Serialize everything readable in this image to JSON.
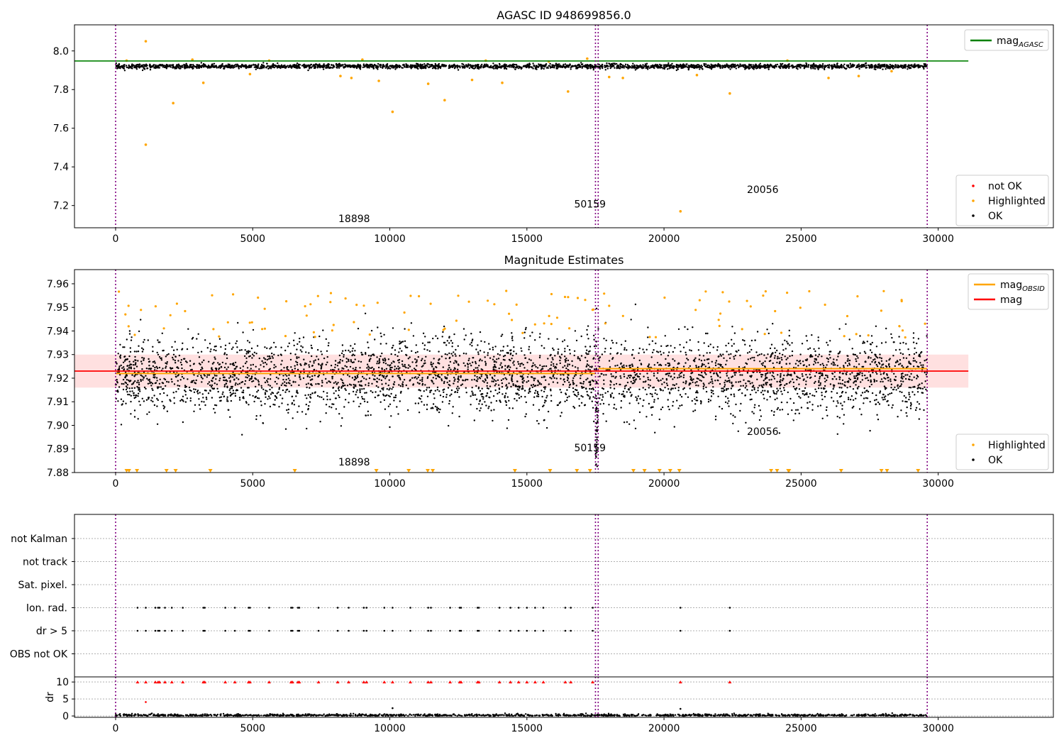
{
  "colors": {
    "ok": "#000000",
    "highlighted": "#ffa500",
    "not_ok": "#ff0000",
    "agasc_line": "#008000",
    "mag_line": "#ff0000",
    "mag_band": "#ffcccc",
    "obsid_line": "#ffa500",
    "vlines": "#800080"
  },
  "chart_data": [
    {
      "type": "scatter",
      "title": "AGASC ID 948699856.0",
      "xlabel": "",
      "ylabel": "",
      "xlim": [
        -1500,
        34200
      ],
      "ylim": [
        7.085,
        8.135
      ],
      "x_ticks": [
        0,
        5000,
        10000,
        15000,
        20000,
        25000,
        30000
      ],
      "y_ticks": [
        7.2,
        7.4,
        7.6,
        7.8,
        8.0
      ],
      "y_tick_labels": [
        "7.2",
        "7.4",
        "7.6",
        "7.8",
        "8.0"
      ],
      "grid": false,
      "x_data_max": 29600,
      "ok_band": {
        "center": 7.92,
        "spread": 0.012
      },
      "reference_lines": [
        {
          "name": "mag_AGASC",
          "label": "mag",
          "subscript": "AGASC",
          "y": 7.948,
          "x": [
            -1500,
            31100
          ],
          "color": "#008000"
        }
      ],
      "vertical_lines": [
        0,
        17500,
        17600,
        29600
      ],
      "annotations": [
        {
          "text": "18898",
          "x": 8700,
          "y": 7.115
        },
        {
          "text": "50159",
          "x": 17300,
          "y": 7.19
        },
        {
          "text": "20056",
          "x": 23600,
          "y": 7.265
        }
      ],
      "highlighted_points": [
        {
          "x": 1100,
          "y": 8.05
        },
        {
          "x": 1100,
          "y": 7.515
        },
        {
          "x": 2100,
          "y": 7.73
        },
        {
          "x": 3200,
          "y": 7.835
        },
        {
          "x": 4900,
          "y": 7.88
        },
        {
          "x": 8200,
          "y": 7.87
        },
        {
          "x": 8600,
          "y": 7.86
        },
        {
          "x": 9600,
          "y": 7.845
        },
        {
          "x": 10100,
          "y": 7.685
        },
        {
          "x": 11400,
          "y": 7.83
        },
        {
          "x": 12000,
          "y": 7.745
        },
        {
          "x": 13000,
          "y": 7.85
        },
        {
          "x": 14100,
          "y": 7.835
        },
        {
          "x": 16500,
          "y": 7.79
        },
        {
          "x": 18000,
          "y": 7.865
        },
        {
          "x": 18500,
          "y": 7.86
        },
        {
          "x": 20600,
          "y": 7.17
        },
        {
          "x": 21200,
          "y": 7.875
        },
        {
          "x": 22400,
          "y": 7.78
        },
        {
          "x": 26000,
          "y": 7.86
        },
        {
          "x": 27100,
          "y": 7.87
        },
        {
          "x": 28300,
          "y": 7.895
        },
        {
          "x": 400,
          "y": 7.95
        },
        {
          "x": 2800,
          "y": 7.955
        },
        {
          "x": 5600,
          "y": 7.95
        },
        {
          "x": 9000,
          "y": 7.955
        },
        {
          "x": 13500,
          "y": 7.95
        },
        {
          "x": 15800,
          "y": 7.945
        },
        {
          "x": 17200,
          "y": 7.96
        },
        {
          "x": 24500,
          "y": 7.95
        }
      ],
      "legends": [
        {
          "placement": "upper-right",
          "entries": [
            {
              "label": "mag",
              "subscript": "AGASC",
              "kind": "line",
              "color": "#008000"
            }
          ]
        },
        {
          "placement": "lower-right",
          "entries": [
            {
              "label": "not OK",
              "kind": "marker",
              "color": "#ff0000"
            },
            {
              "label": "Highlighted",
              "kind": "marker",
              "color": "#ffa500"
            },
            {
              "label": "OK",
              "kind": "marker",
              "color": "#000000"
            }
          ]
        }
      ]
    },
    {
      "type": "scatter",
      "title": "Magnitude Estimates",
      "xlabel": "",
      "ylabel": "",
      "xlim": [
        -1500,
        34200
      ],
      "ylim": [
        7.88,
        7.966
      ],
      "x_ticks": [
        0,
        5000,
        10000,
        15000,
        20000,
        25000,
        30000
      ],
      "y_ticks": [
        7.88,
        7.89,
        7.9,
        7.91,
        7.92,
        7.93,
        7.94,
        7.95,
        7.96
      ],
      "y_tick_labels": [
        "7.88",
        "7.89",
        "7.90",
        "7.91",
        "7.92",
        "7.93",
        "7.94",
        "7.95",
        "7.96"
      ],
      "grid": false,
      "x_data_max": 29600,
      "ok_band": {
        "center": 7.921,
        "spread": 0.008
      },
      "mag": {
        "y": 7.923,
        "band": [
          7.916,
          7.93
        ],
        "x": [
          -1500,
          31100
        ]
      },
      "mag_obsid": [
        {
          "x0": 0,
          "x1": 17500,
          "y": 7.922
        },
        {
          "x0": 17600,
          "x1": 29600,
          "y": 7.924
        }
      ],
      "vertical_lines": [
        0,
        17500,
        17600,
        29600
      ],
      "annotations": [
        {
          "text": "18898",
          "x": 8700,
          "y": 7.883
        },
        {
          "text": "50159",
          "x": 17300,
          "y": 7.889
        },
        {
          "text": "20056",
          "x": 23600,
          "y": 7.896
        }
      ],
      "legends": [
        {
          "placement": "upper-right",
          "entries": [
            {
              "label": "mag",
              "subscript": "OBSID",
              "kind": "line",
              "color": "#ffa500"
            },
            {
              "label": "mag",
              "subscript": "",
              "kind": "line",
              "color": "#ff0000"
            }
          ]
        },
        {
          "placement": "lower-right",
          "entries": [
            {
              "label": "Highlighted",
              "kind": "marker",
              "color": "#ffa500"
            },
            {
              "label": "OK",
              "kind": "marker",
              "color": "#000000"
            }
          ]
        }
      ]
    },
    {
      "type": "scatter",
      "title": "",
      "xlabel": "",
      "ylabel": "",
      "xlim": [
        -1500,
        34200
      ],
      "x_ticks": [
        0,
        5000,
        10000,
        15000,
        20000,
        25000,
        30000
      ],
      "categories": [
        "not Kalman",
        "not track",
        "Sat. pixel.",
        "Ion. rad.",
        "dr > 5",
        "OBS not OK"
      ],
      "grid": true,
      "vertical_lines": [
        0,
        17500,
        17600,
        29600
      ],
      "flag_x": [
        800,
        1100,
        1450,
        1550,
        1600,
        1800,
        2050,
        2450,
        3200,
        3250,
        4000,
        4350,
        4850,
        4900,
        5600,
        6400,
        6450,
        6650,
        6700,
        7400,
        8100,
        8500,
        9050,
        9150,
        9800,
        10100,
        10750,
        11400,
        11500,
        12200,
        12550,
        12600,
        13200,
        13250,
        14000,
        14400,
        14700,
        15000,
        15300,
        15600,
        16400,
        16600,
        17400,
        20600,
        22400
      ],
      "flag_rows": [
        "Ion. rad.",
        "dr > 5"
      ]
    },
    {
      "type": "scatter",
      "title": "",
      "xlabel": "",
      "ylabel": "dr",
      "xlim": [
        -1500,
        34200
      ],
      "ylim": [
        -0.4,
        11.5
      ],
      "x_ticks": [
        0,
        5000,
        10000,
        15000,
        20000,
        25000,
        30000
      ],
      "y_ticks": [
        0,
        5,
        10
      ],
      "y_tick_labels": [
        "0",
        "5",
        "10"
      ],
      "grid": true,
      "vertical_lines": [
        0,
        17500,
        17600,
        29600
      ],
      "clipped_value": 10,
      "outliers": [
        {
          "x": 1100,
          "y": 4.1
        },
        {
          "x": 10100,
          "y": 2.3
        },
        {
          "x": 20600,
          "y": 2.1
        }
      ]
    }
  ]
}
